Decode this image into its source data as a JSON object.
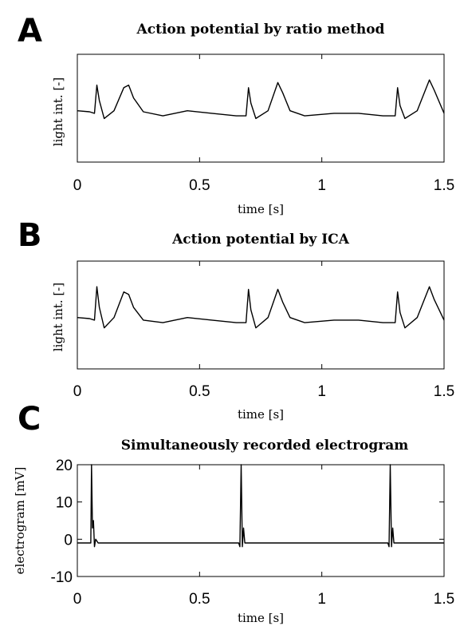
{
  "chart_data": [
    {
      "panel": "A",
      "type": "line",
      "title": "Action potential by ratio method",
      "xlabel": "time [s]",
      "ylabel": "light int. [-]",
      "xlim": [
        0,
        1.5
      ],
      "xticks": [
        "0",
        "0.5",
        "1",
        "1.5"
      ],
      "grid": false,
      "series": [
        {
          "x": [
            0,
            0.05,
            0.07,
            0.08,
            0.09,
            0.11,
            0.15,
            0.19,
            0.21,
            0.23,
            0.27,
            0.35,
            0.45,
            0.55,
            0.65,
            0.69,
            0.7,
            0.71,
            0.73,
            0.78,
            0.82,
            0.84,
            0.87,
            0.93,
            1.05,
            1.15,
            1.25,
            1.3,
            1.31,
            1.32,
            1.34,
            1.39,
            1.44,
            1.46,
            1.5
          ],
          "y": [
            0.1,
            0.08,
            0.05,
            0.6,
            0.3,
            -0.05,
            0.1,
            0.55,
            0.6,
            0.35,
            0.08,
            0.0,
            0.1,
            0.05,
            0.0,
            0.0,
            0.55,
            0.25,
            -0.05,
            0.1,
            0.65,
            0.45,
            0.1,
            0.0,
            0.05,
            0.05,
            0.0,
            0.0,
            0.55,
            0.2,
            -0.05,
            0.1,
            0.7,
            0.5,
            0.05
          ]
        }
      ]
    },
    {
      "panel": "B",
      "type": "line",
      "title": "Action potential by ICA",
      "xlabel": "time [s]",
      "ylabel": "light int. [-]",
      "xlim": [
        0,
        1.5
      ],
      "xticks": [
        "0",
        "0.5",
        "1",
        "1.5"
      ],
      "grid": false,
      "series": [
        {
          "x": [
            0,
            0.05,
            0.07,
            0.08,
            0.09,
            0.11,
            0.15,
            0.19,
            0.21,
            0.23,
            0.27,
            0.35,
            0.45,
            0.55,
            0.65,
            0.69,
            0.7,
            0.71,
            0.73,
            0.78,
            0.82,
            0.84,
            0.87,
            0.93,
            1.05,
            1.15,
            1.25,
            1.3,
            1.31,
            1.32,
            1.34,
            1.39,
            1.44,
            1.46,
            1.5
          ],
          "y": [
            0.1,
            0.08,
            0.05,
            0.7,
            0.3,
            -0.1,
            0.1,
            0.6,
            0.55,
            0.3,
            0.05,
            0.0,
            0.1,
            0.05,
            0.0,
            0.0,
            0.65,
            0.25,
            -0.1,
            0.1,
            0.65,
            0.4,
            0.1,
            0.0,
            0.05,
            0.05,
            0.0,
            0.0,
            0.6,
            0.2,
            -0.1,
            0.1,
            0.7,
            0.45,
            0.05
          ]
        }
      ]
    },
    {
      "panel": "C",
      "type": "line",
      "title": "Simultaneously recorded electrogram",
      "xlabel": "time [s]",
      "ylabel": "electrogram [mV]",
      "xlim": [
        0,
        1.5
      ],
      "ylim": [
        -10,
        20
      ],
      "xticks": [
        "0",
        "0.5",
        "1",
        "1.5"
      ],
      "yticks": [
        "20",
        "10",
        "0",
        "-10"
      ],
      "grid": false,
      "series": [
        {
          "x": [
            0,
            0.055,
            0.058,
            0.062,
            0.066,
            0.07,
            0.075,
            0.085,
            0.1,
            0.2,
            0.3,
            0.45,
            0.6,
            0.66,
            0.665,
            0.67,
            0.675,
            0.68,
            0.685,
            0.69,
            0.7,
            0.72,
            0.8,
            0.9,
            1.0,
            1.1,
            1.2,
            1.27,
            1.275,
            1.28,
            1.285,
            1.29,
            1.295,
            1.3,
            1.31,
            1.33,
            1.4,
            1.5
          ],
          "y": [
            -1,
            -1,
            20,
            3,
            5,
            -2,
            0,
            -1,
            -1,
            -1,
            -1,
            -1,
            -1,
            -1,
            -2,
            20,
            -2,
            3,
            -1,
            -1,
            -1,
            -1,
            -1,
            -1,
            -1,
            -1,
            -1,
            -1,
            -2,
            20,
            -2,
            3,
            -1,
            -1,
            -1,
            -1,
            -1,
            -1
          ]
        }
      ]
    }
  ]
}
